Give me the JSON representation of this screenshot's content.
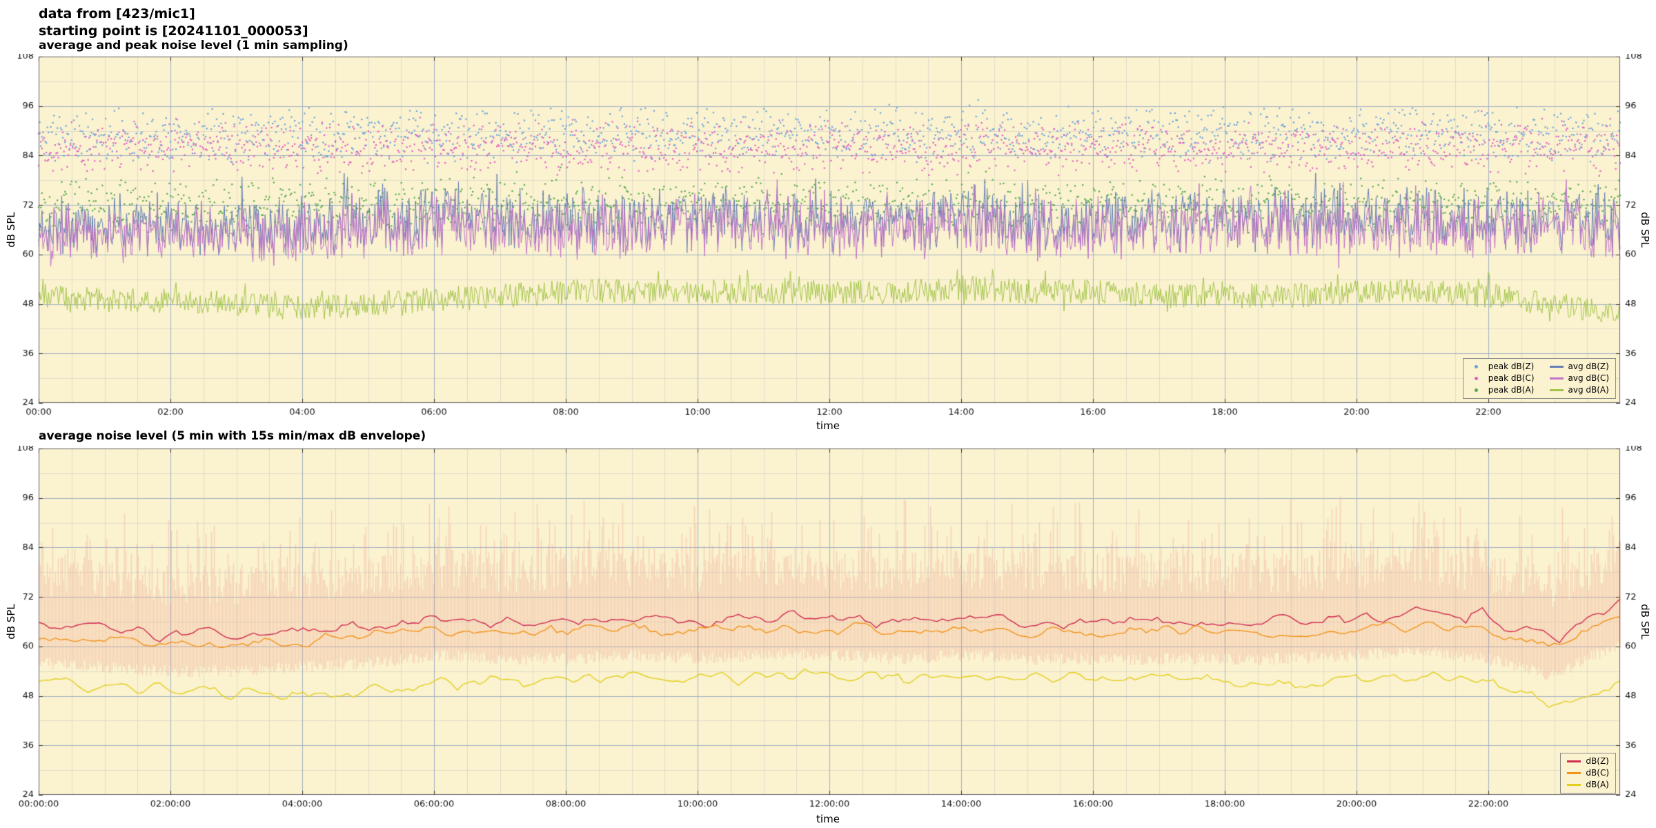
{
  "header": {
    "line1": "data from [423/mic1]",
    "line2": "starting point is [20241101_000053]"
  },
  "chart_data": [
    {
      "type": "line+scatter",
      "title": "average and peak noise level (1 min sampling)",
      "xlabel": "time",
      "ylabel": "dB SPL",
      "ylim": [
        24,
        108
      ],
      "yticks": [
        24,
        36,
        48,
        60,
        72,
        84,
        96,
        108
      ],
      "xtick_hours": [
        0,
        2,
        4,
        6,
        8,
        10,
        12,
        14,
        16,
        18,
        20,
        22
      ],
      "xtick_labels": [
        "00:00",
        "02:00",
        "04:00",
        "06:00",
        "08:00",
        "10:00",
        "12:00",
        "14:00",
        "16:00",
        "18:00",
        "20:00",
        "22:00"
      ],
      "hours_total": 24,
      "sample_minutes": 1,
      "grid_on": true,
      "legend_position": "bottom-right",
      "legend_columns": 2,
      "background": "#fbf2cf",
      "grid_major": "#9fb0c4",
      "grid_minor": "rgba(160,172,190,0.30)",
      "seed": 101,
      "event_prob": 0,
      "event_amp": 0,
      "envelope": null,
      "scatter_series": [
        {
          "label": "peak dB(Z)",
          "color": "#6ba3dc",
          "center": 89,
          "spread": 7,
          "cap": 97.5,
          "extra_prob": 0.05,
          "extra_amp": 4,
          "seed": 11
        },
        {
          "label": "peak dB(C)",
          "color": "#e05ec4",
          "center": 86,
          "spread": 7,
          "cap": 95.0,
          "extra_prob": 0.05,
          "extra_amp": 4,
          "seed": 12
        },
        {
          "label": "peak dB(A)",
          "color": "#55aa50",
          "center": 72,
          "spread": 7,
          "cap": 88.0,
          "extra_prob": 0.05,
          "extra_amp": 4,
          "seed": 13
        }
      ],
      "line_series": [
        {
          "label": "avg dB(Z)",
          "color": "#6680b4",
          "hourly": [
            68,
            67,
            67,
            67,
            67,
            68,
            68,
            68,
            68,
            68,
            69,
            69,
            68,
            68,
            69,
            68,
            68,
            68,
            68,
            68,
            69,
            69,
            68,
            68,
            68
          ],
          "shared_weight": 6.5,
          "jitter": 2.2,
          "spike_prob": 0.1,
          "spike_amp": 11,
          "event_weight": 0,
          "smooth": false,
          "width": 1,
          "seed": 21
        },
        {
          "label": "avg dB(C)",
          "color": "#c173c9",
          "hourly": [
            66,
            65,
            65,
            65,
            65,
            66,
            66,
            66,
            66,
            66,
            67,
            67,
            66,
            66,
            67,
            66,
            66,
            66,
            66,
            66,
            67,
            67,
            66,
            66,
            66
          ],
          "shared_weight": 6.0,
          "jitter": 2.2,
          "spike_prob": 0.1,
          "spike_amp": 10,
          "event_weight": 0,
          "smooth": false,
          "width": 1,
          "seed": 22
        },
        {
          "label": "avg dB(A)",
          "color": "#a2c54a",
          "hourly": [
            50,
            49,
            49,
            48,
            47,
            48,
            49,
            50,
            51,
            51,
            51,
            51,
            51,
            51,
            52,
            51,
            51,
            50,
            50,
            50,
            51,
            51,
            50,
            48,
            45
          ],
          "shared_weight": 0,
          "jitter": 3.0,
          "spike_prob": 0.06,
          "spike_amp": 6,
          "event_weight": 0,
          "smooth": false,
          "width": 1,
          "seed": 23
        }
      ]
    },
    {
      "type": "line+envelope",
      "title": "average noise level (5 min with 15s min/max dB envelope)",
      "xlabel": "time",
      "ylabel": "dB SPL",
      "ylim": [
        24,
        108
      ],
      "yticks": [
        24,
        36,
        48,
        60,
        72,
        84,
        96,
        108
      ],
      "xtick_hours": [
        0,
        2,
        4,
        6,
        8,
        10,
        12,
        14,
        16,
        18,
        20,
        22
      ],
      "xtick_labels": [
        "00:00:00",
        "02:00:00",
        "04:00:00",
        "06:00:00",
        "08:00:00",
        "10:00:00",
        "12:00:00",
        "14:00:00",
        "16:00:00",
        "18:00:00",
        "20:00:00",
        "22:00:00"
      ],
      "hours_total": 24,
      "sample_minutes": 5,
      "grid_on": true,
      "legend_position": "bottom-right",
      "legend_columns": 1,
      "background": "#fbf2cf",
      "grid_major": "#9fb0c4",
      "grid_minor": "rgba(160,172,190,0.30)",
      "seed": 202,
      "event_prob": 0.02,
      "event_amp": 7,
      "envelope": {
        "color": "#efa08e",
        "alpha": 0.38,
        "low_offset": 5,
        "low_rand": 3,
        "high_offset": 7,
        "high_rand": 10,
        "spike_prob": 0.3,
        "spike_amp": 14,
        "cap": 96.5,
        "seed": 55
      },
      "scatter_series": [],
      "line_series": [
        {
          "label": "dB(Z)",
          "color": "#d02a50",
          "hourly": [
            65,
            64,
            63,
            63,
            64,
            65,
            67,
            66,
            66,
            67,
            66,
            67,
            67,
            66,
            67,
            66,
            66,
            66,
            66,
            66,
            67,
            68,
            66,
            62,
            70
          ],
          "shared_weight": 0,
          "jitter": 2.2,
          "spike_prob": 0.02,
          "spike_amp": 5,
          "event_weight": 1.0,
          "smooth": true,
          "width": 1.4,
          "seed": 31
        },
        {
          "label": "dB(C)",
          "color": "#f2941a",
          "hourly": [
            62.5,
            61.5,
            60.5,
            60.5,
            61.5,
            62.5,
            64.5,
            63.5,
            63.5,
            64.5,
            63.5,
            64.5,
            64.5,
            63.5,
            64.5,
            63.5,
            63.5,
            63.5,
            63.5,
            63.5,
            64.5,
            65.5,
            63.5,
            59.5,
            67.5
          ],
          "shared_weight": 0,
          "jitter": 2.1,
          "spike_prob": 0.02,
          "spike_amp": 5,
          "event_weight": 0.9,
          "smooth": true,
          "width": 1.4,
          "seed": 32
        },
        {
          "label": "dB(A)",
          "color": "#e3cf1d",
          "hourly": [
            51,
            50,
            49,
            48,
            48,
            49,
            51,
            52,
            52,
            53,
            52,
            53,
            53,
            52,
            53,
            52,
            52,
            52,
            52,
            51,
            52,
            52,
            51,
            46,
            50
          ],
          "shared_weight": 0,
          "jitter": 2.4,
          "spike_prob": 0.02,
          "spike_amp": 4,
          "event_weight": 0.3,
          "smooth": true,
          "width": 1.4,
          "seed": 33
        }
      ]
    }
  ]
}
